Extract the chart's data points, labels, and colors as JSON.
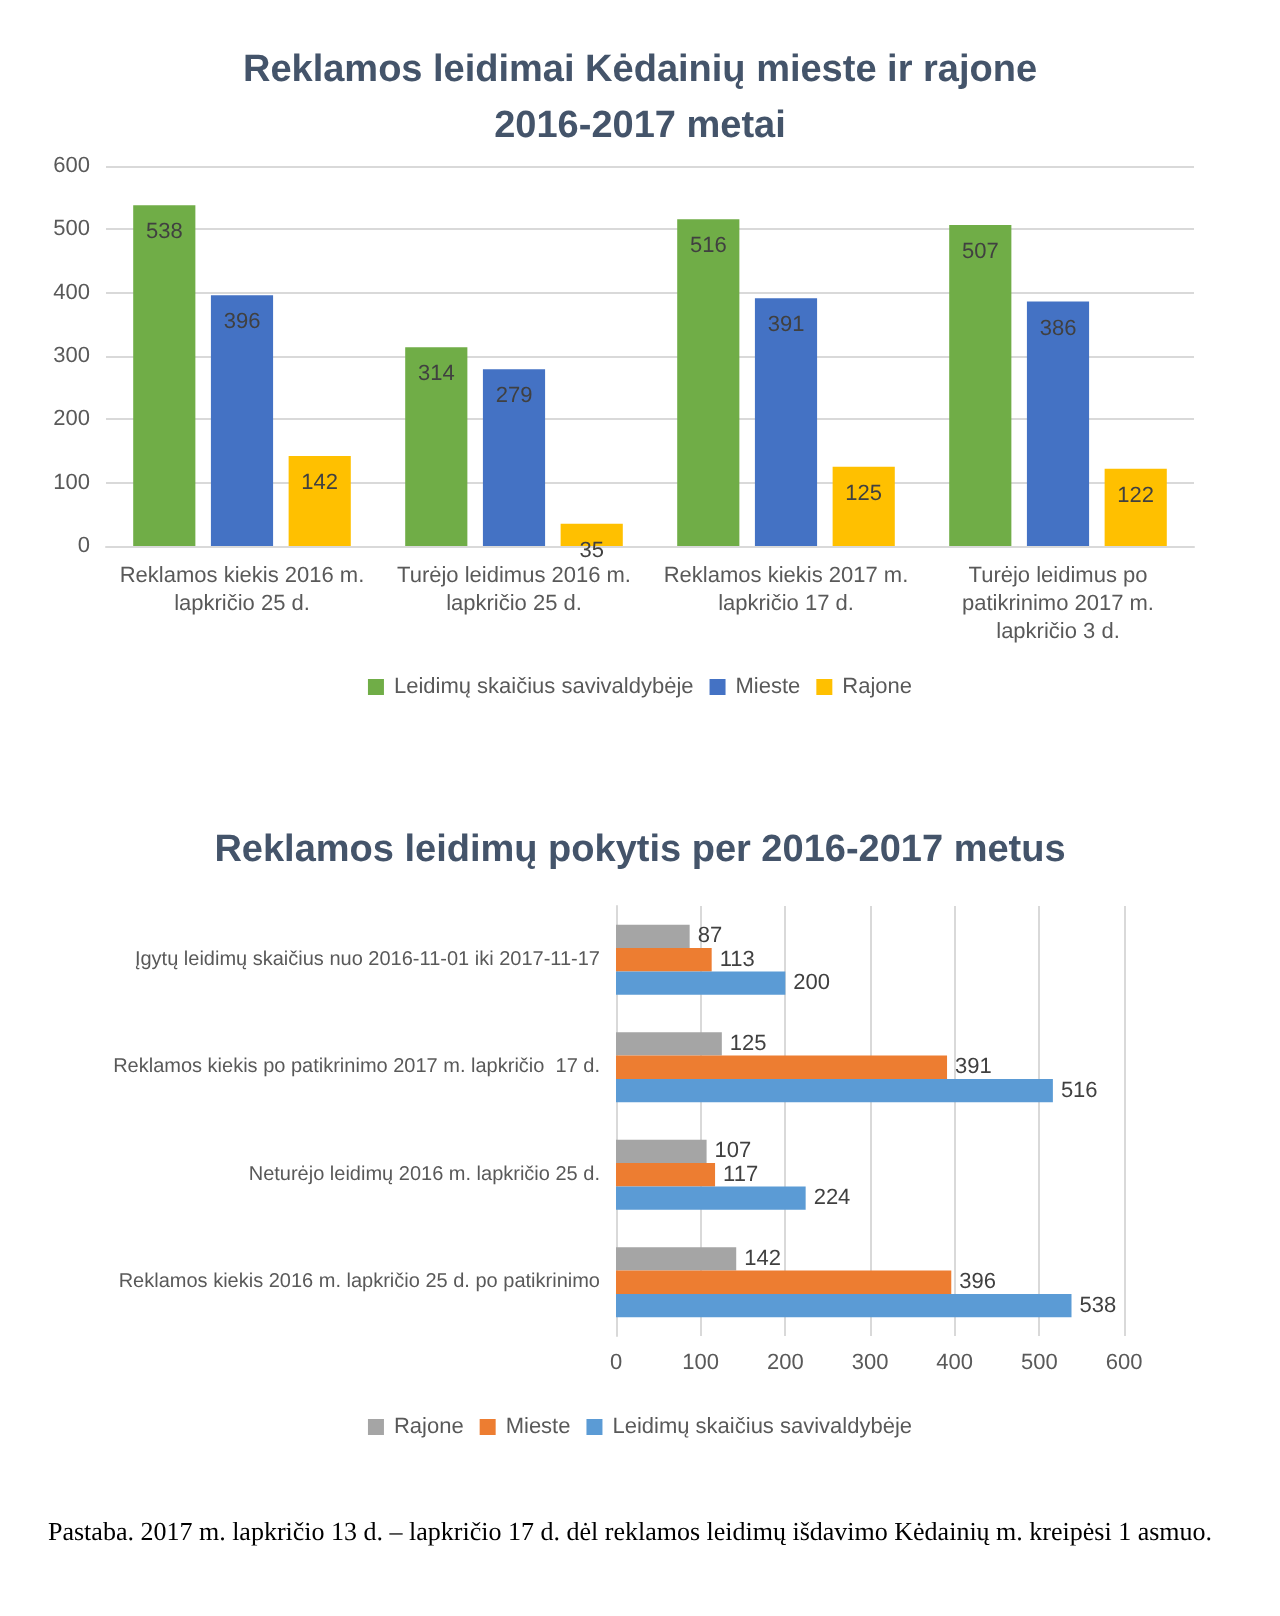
{
  "chart_data": [
    {
      "type": "bar",
      "title": "Reklamos leidimai Kėdainių mieste ir rajone\n2016-2017 metai",
      "categories": [
        "Reklamos kiekis 2016 m.\nlapkričio 25 d.",
        "Turėjo leidimus 2016 m.\nlapkričio 25 d.",
        "Reklamos kiekis 2017 m.\nlapkričio 17 d.",
        "Turėjo leidimus po\npatikrinimo 2017 m.\nlapkričio 3 d."
      ],
      "series": [
        {
          "name": "Leidimų skaičius savivaldybėje",
          "color": "#70ad47",
          "values": [
            538,
            314,
            516,
            507
          ]
        },
        {
          "name": "Mieste",
          "color": "#4472c4",
          "values": [
            396,
            279,
            391,
            386
          ]
        },
        {
          "name": "Rajone",
          "color": "#ffc000",
          "values": [
            142,
            35,
            125,
            122
          ]
        }
      ],
      "ylim": [
        0,
        600
      ],
      "yticks": [
        0,
        100,
        200,
        300,
        400,
        500,
        600
      ],
      "grid": "y",
      "legend": "bottom",
      "data_labels": true
    },
    {
      "type": "bar",
      "orientation": "horizontal",
      "title": "Reklamos leidimų pokytis per 2016-2017 metus",
      "categories": [
        "Įgytų leidimų skaičius nuo 2016-11-01 iki 2017-11-17",
        "Reklamos kiekis po patikrinimo 2017 m. lapkričio  17 d.",
        "Neturėjo leidimų 2016 m. lapkričio 25 d.",
        "Reklamos kiekis 2016 m. lapkričio 25 d. po patikrinimo"
      ],
      "series": [
        {
          "name": "Rajone",
          "color": "#a5a5a5",
          "values": [
            87,
            125,
            107,
            142
          ]
        },
        {
          "name": "Mieste",
          "color": "#ed7d31",
          "values": [
            113,
            391,
            117,
            396
          ]
        },
        {
          "name": "Leidimų skaičius savivaldybėje",
          "color": "#5b9bd5",
          "values": [
            200,
            516,
            224,
            538
          ]
        }
      ],
      "xlim": [
        0,
        600
      ],
      "xticks": [
        0,
        100,
        200,
        300,
        400,
        500,
        600
      ],
      "grid": "x",
      "legend": "bottom",
      "data_labels": true,
      "annotations": [
        "Pastaba. 2017 m. lapkričio 13 d. – lapkričio 17 d. dėl reklamos leidimų išdavimo Kėdainių m. kreipėsi 1 asmuo."
      ]
    }
  ]
}
